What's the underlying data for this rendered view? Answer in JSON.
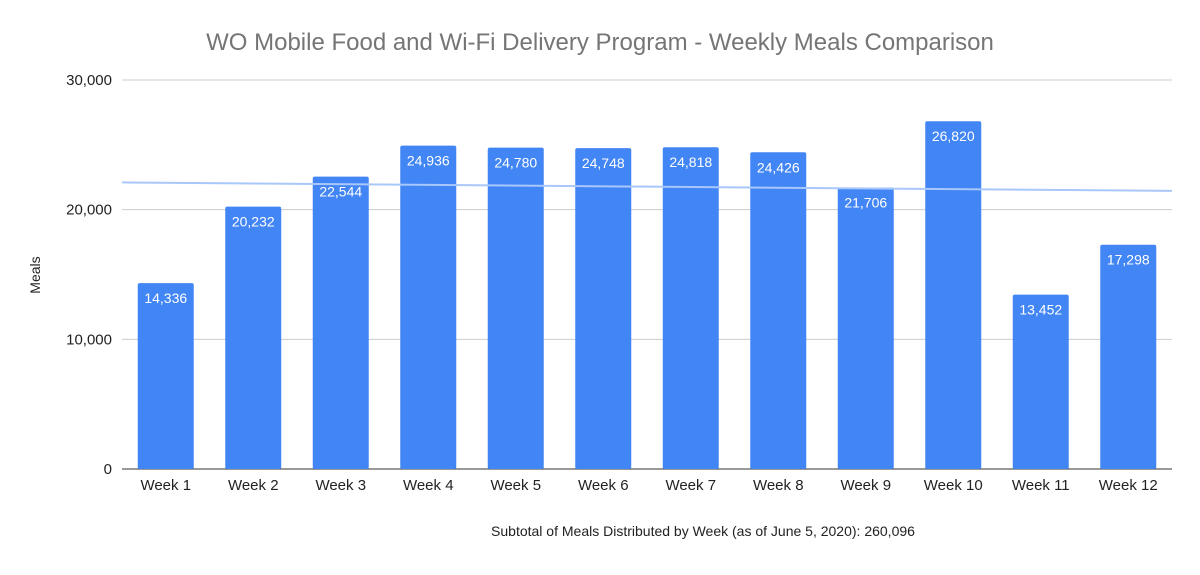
{
  "chart_data": {
    "type": "bar",
    "title": "WO Mobile Food and Wi-Fi Delivery Program - Weekly Meals Comparison",
    "xlabel": "Subtotal of Meals Distributed by Week (as of June 5, 2020): 260,096",
    "ylabel": "Meals",
    "categories": [
      "Week 1",
      "Week 2",
      "Week 3",
      "Week 4",
      "Week 5",
      "Week 6",
      "Week 7",
      "Week 8",
      "Week 9",
      "Week 10",
      "Week 11",
      "Week 12"
    ],
    "values": [
      14336,
      20232,
      22544,
      24936,
      24780,
      24748,
      24818,
      24426,
      21706,
      26820,
      13452,
      17298
    ],
    "value_labels": [
      "14,336",
      "20,232",
      "22,544",
      "24,936",
      "24,780",
      "24,748",
      "24,818",
      "24,426",
      "21,706",
      "26,820",
      "13,452",
      "17,298"
    ],
    "ylim": [
      0,
      30000
    ],
    "yticks": [
      0,
      10000,
      20000,
      30000
    ],
    "ytick_labels": [
      "0",
      "10,000",
      "20,000",
      "30,000"
    ],
    "trendline": {
      "type": "linear",
      "start_value": 22100,
      "end_value": 21450
    },
    "grid": true,
    "legend": "none",
    "colors": {
      "bar": "#4285f4",
      "trendline": "#a8c7fa",
      "grid": "#cccccc",
      "title": "#757575"
    }
  }
}
